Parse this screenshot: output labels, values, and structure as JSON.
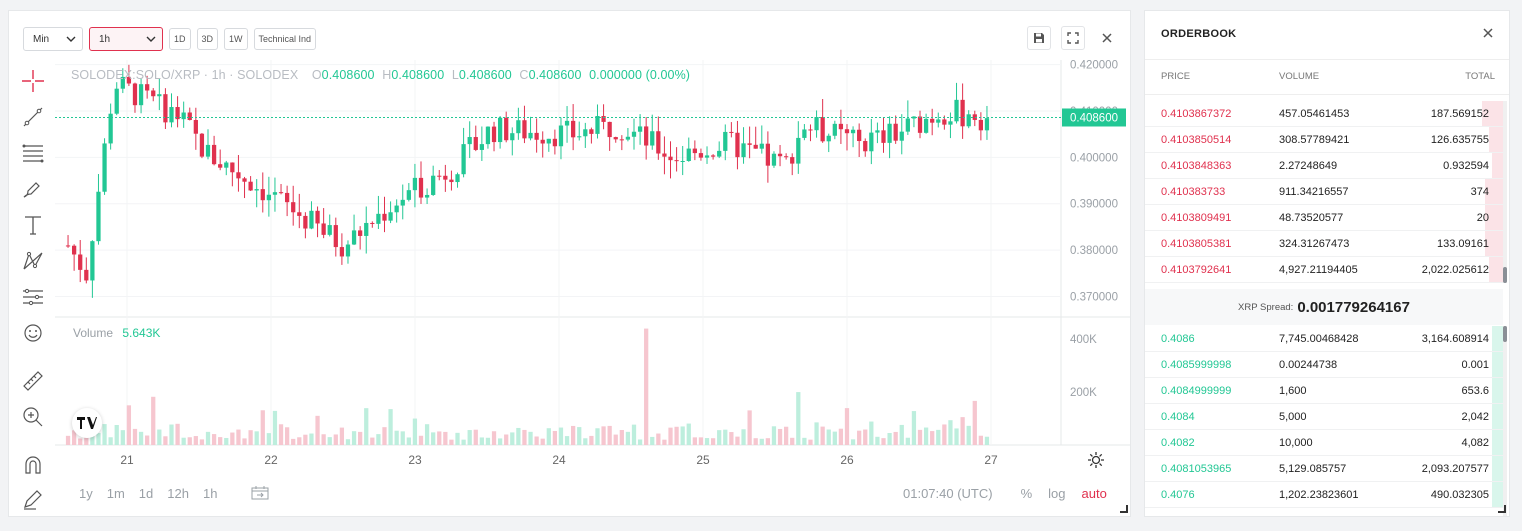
{
  "toolbar": {
    "interval_type": "Min",
    "interval_value": "1h",
    "btn_1d": "1D",
    "btn_3d": "3D",
    "btn_1w": "1W",
    "indicators": "Technical Ind"
  },
  "legend": {
    "symbol": "SOLODEX:SOLO/XRP · 1h · SOLODEX",
    "o_label": "O",
    "o_value": "0.408600",
    "h_label": "H",
    "h_value": "0.408600",
    "l_label": "L",
    "l_value": "0.408600",
    "c_label": "C",
    "c_value": "0.408600",
    "change": "0.000000 (0.00%)"
  },
  "volume_legend": {
    "label": "Volume",
    "value": "5.643K"
  },
  "price_axis": [
    "0.420000",
    "0.410000",
    "0.400000",
    "0.390000",
    "0.380000",
    "0.370000"
  ],
  "current_price": "0.408600",
  "volume_axis": [
    "400K",
    "200K"
  ],
  "time_axis": [
    "21",
    "22",
    "23",
    "24",
    "25",
    "26",
    "27"
  ],
  "ranges": [
    "1y",
    "1m",
    "1d",
    "12h",
    "1h"
  ],
  "clock": "01:07:40 (UTC)",
  "scale_options": {
    "percent": "%",
    "log": "log",
    "auto": "auto"
  },
  "colors": {
    "up": "#22c794",
    "down": "#e0314e",
    "volume_up": "#bdeedd",
    "volume_down": "#f6c6cf"
  },
  "chart_data": {
    "type": "candlestick",
    "ylim": [
      0.366,
      0.421
    ],
    "volume_ylim": [
      0,
      480000
    ],
    "x_categories": [
      "21",
      "22",
      "23",
      "24",
      "25",
      "26",
      "27"
    ]
  },
  "orderbook": {
    "title": "ORDERBOOK",
    "headers": {
      "price": "PRICE",
      "volume": "VOLUME",
      "total": "TOTAL"
    },
    "asks": [
      {
        "price": "0.4103867372",
        "volume": "457.05461453",
        "total": "187.569152",
        "depth": 0.06
      },
      {
        "price": "0.4103850514",
        "volume": "308.57789421",
        "total": "126.635755",
        "depth": 0.04
      },
      {
        "price": "0.4103848363",
        "volume": "2.27248649",
        "total": "0.932594",
        "depth": 0.03
      },
      {
        "price": "0.410383733",
        "volume": "911.34216557",
        "total": "374",
        "depth": 0.05
      },
      {
        "price": "0.4103809491",
        "volume": "48.73520577",
        "total": "20",
        "depth": 0.05
      },
      {
        "price": "0.4103805381",
        "volume": "324.31267473",
        "total": "133.09161",
        "depth": 0.05
      },
      {
        "price": "0.4103792641",
        "volume": "4,927.21194405",
        "total": "2,022.025612",
        "depth": 0.04
      }
    ],
    "spread_label": "XRP Spread:",
    "spread_value": "0.001779264167",
    "bids": [
      {
        "price": "0.4086",
        "volume": "7,745.00468428",
        "total": "3,164.608914",
        "depth": 0.03
      },
      {
        "price": "0.4085999998",
        "volume": "0.00244738",
        "total": "0.001",
        "depth": 0.03
      },
      {
        "price": "0.4084999999",
        "volume": "1,600",
        "total": "653.6",
        "depth": 0.03
      },
      {
        "price": "0.4084",
        "volume": "5,000",
        "total": "2,042",
        "depth": 0.03
      },
      {
        "price": "0.4082",
        "volume": "10,000",
        "total": "4,082",
        "depth": 0.03
      },
      {
        "price": "0.4081053965",
        "volume": "5,129.085757",
        "total": "2,093.207577",
        "depth": 0.03
      },
      {
        "price": "0.4076",
        "volume": "1,202.23823601",
        "total": "490.032305",
        "depth": 0.03
      }
    ]
  }
}
